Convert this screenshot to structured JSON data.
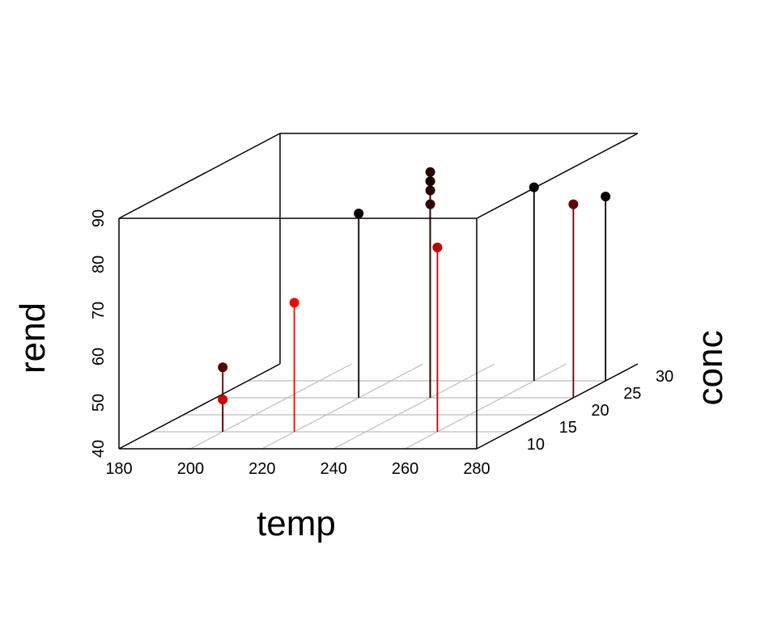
{
  "chart_data": {
    "type": "scatter",
    "subtype": "3d-scatter-with-drop-lines",
    "title": "",
    "x_label": "temp",
    "y_label": "conc",
    "z_label": "rend",
    "x_range": [
      180,
      280
    ],
    "y_range": [
      5,
      30
    ],
    "z_range": [
      40,
      90
    ],
    "x_ticks": [
      "180",
      "200",
      "220",
      "240",
      "260",
      "280"
    ],
    "y_ticks": [
      "10",
      "15",
      "20",
      "25",
      "30"
    ],
    "z_ticks": [
      "40",
      "50",
      "60",
      "70",
      "80",
      "90"
    ],
    "grid": "floor",
    "points": [
      {
        "x": 200,
        "y": 10,
        "z": 47,
        "color": "#D00000"
      },
      {
        "x": 200,
        "y": 10,
        "z": 54,
        "color": "#5A0000"
      },
      {
        "x": 220,
        "y": 10,
        "z": 68,
        "color": "#FF0000"
      },
      {
        "x": 220,
        "y": 20,
        "z": 80,
        "color": "#0A0000"
      },
      {
        "x": 240,
        "y": 20,
        "z": 82,
        "color": "#3A0000"
      },
      {
        "x": 240,
        "y": 20,
        "z": 85,
        "color": "#2A0000"
      },
      {
        "x": 240,
        "y": 20,
        "z": 87,
        "color": "#1A0000"
      },
      {
        "x": 240,
        "y": 20,
        "z": 89,
        "color": "#2A0000"
      },
      {
        "x": 260,
        "y": 10,
        "z": 80,
        "color": "#C00000"
      },
      {
        "x": 260,
        "y": 25,
        "z": 82,
        "color": "#050000"
      },
      {
        "x": 280,
        "y": 20,
        "z": 82,
        "color": "#600000"
      },
      {
        "x": 280,
        "y": 25,
        "z": 80,
        "color": "#080000"
      }
    ],
    "colors": {
      "axis": "#000000",
      "grid": "#BEBEBE"
    }
  }
}
